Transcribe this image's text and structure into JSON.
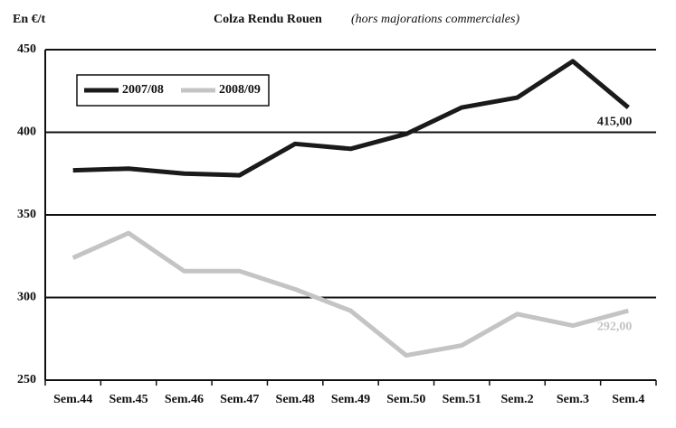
{
  "chart_data": {
    "type": "line",
    "title": "Colza Rendu Rouen",
    "subtitle": "(hors majorations commerciales)",
    "y_label": "En €/t",
    "categories": [
      "Sem.44",
      "Sem.45",
      "Sem.46",
      "Sem.47",
      "Sem.48",
      "Sem.49",
      "Sem.50",
      "Sem.51",
      "Sem.2",
      "Sem.3",
      "Sem.4"
    ],
    "series": [
      {
        "name": "2007/08",
        "color": "#1a1a1a",
        "values": [
          377,
          378,
          375,
          374,
          393,
          390,
          399,
          415,
          421,
          443,
          415
        ],
        "value_labels": [
          null,
          null,
          null,
          null,
          null,
          null,
          null,
          null,
          null,
          null,
          "415,00"
        ]
      },
      {
        "name": "2008/09",
        "color": "#c4c4c4",
        "values": [
          324,
          339,
          316,
          316,
          305,
          292,
          265,
          271,
          290,
          283,
          292
        ],
        "value_labels": [
          null,
          null,
          null,
          null,
          null,
          null,
          null,
          null,
          null,
          null,
          "292,00"
        ]
      }
    ],
    "ylim": [
      250,
      450
    ],
    "yticks": [
      250,
      300,
      350,
      400,
      450
    ],
    "grid": true,
    "legend": "top-left"
  }
}
